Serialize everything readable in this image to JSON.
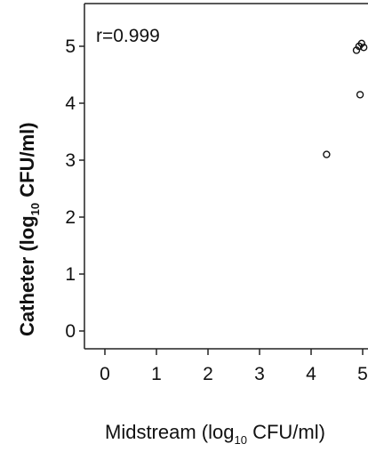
{
  "chart_data": {
    "type": "scatter",
    "xlabel_parts": {
      "pre": "Midstream (log",
      "sub": "10",
      "post": " CFU/ml)"
    },
    "ylabel_parts": {
      "pre": "Catheter (log",
      "sub": "10",
      "post": " CFU/ml)"
    },
    "annotation": "r=0.999",
    "xlim": [
      -0.3,
      5.3
    ],
    "ylim": [
      -0.35,
      5.25
    ],
    "xticks": [
      0,
      1,
      2,
      3,
      4,
      5
    ],
    "yticks": [
      0,
      1,
      2,
      3,
      4,
      5
    ],
    "grid": false,
    "points": [
      {
        "x": 4.3,
        "y": 3.1
      },
      {
        "x": 4.95,
        "y": 4.15
      },
      {
        "x": 4.88,
        "y": 4.93
      },
      {
        "x": 4.93,
        "y": 5.0
      },
      {
        "x": 4.98,
        "y": 5.05
      },
      {
        "x": 5.02,
        "y": 4.98
      }
    ]
  }
}
